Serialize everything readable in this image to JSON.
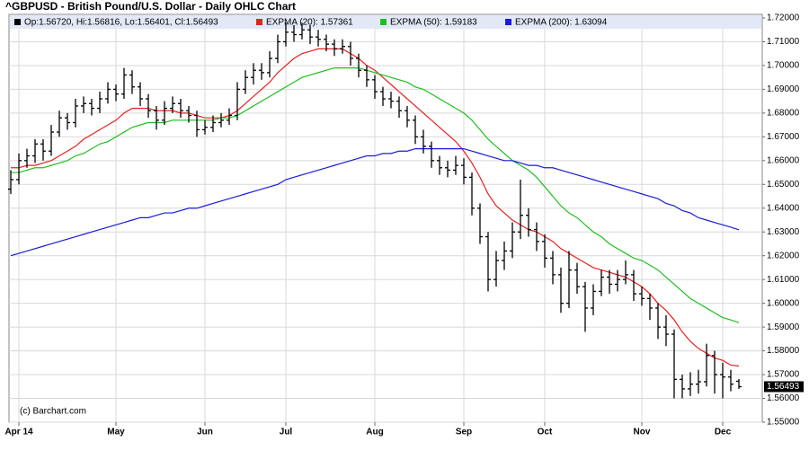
{
  "chart_data": {
    "type": "ohlc",
    "title": "^GBPUSD - British Pound/U.S. Dollar - Daily OHLC Chart",
    "ohlc_legend": "Op:1.56720, Hi:1.56816, Lo:1.56401, Cl:1.56493",
    "last_price_label": "1.56493",
    "copyright": "(c) Barchart.com",
    "bar_color": "#000000",
    "grid": true,
    "ylim": [
      1.55,
      1.72
    ],
    "yticks": [
      {
        "value": 1.55,
        "label": "1.55000"
      },
      {
        "value": 1.56,
        "label": "1.56000"
      },
      {
        "value": 1.57,
        "label": "1.57000"
      },
      {
        "value": 1.58,
        "label": "1.58000"
      },
      {
        "value": 1.59,
        "label": "1.59000"
      },
      {
        "value": 1.6,
        "label": "1.60000"
      },
      {
        "value": 1.61,
        "label": "1.61000"
      },
      {
        "value": 1.62,
        "label": "1.62000"
      },
      {
        "value": 1.63,
        "label": "1.63000"
      },
      {
        "value": 1.64,
        "label": "1.64000"
      },
      {
        "value": 1.65,
        "label": "1.65000"
      },
      {
        "value": 1.66,
        "label": "1.66000"
      },
      {
        "value": 1.67,
        "label": "1.67000"
      },
      {
        "value": 1.68,
        "label": "1.68000"
      },
      {
        "value": 1.69,
        "label": "1.69000"
      },
      {
        "value": 1.7,
        "label": "1.70000"
      },
      {
        "value": 1.71,
        "label": "1.71000"
      },
      {
        "value": 1.72,
        "label": "1.72000"
      }
    ],
    "categories": [
      null,
      "Apr 14",
      null,
      null,
      null,
      null,
      null,
      null,
      null,
      null,
      null,
      null,
      null,
      "May",
      null,
      null,
      null,
      null,
      null,
      null,
      null,
      null,
      null,
      null,
      "Jun",
      null,
      null,
      null,
      null,
      null,
      null,
      null,
      null,
      null,
      "Jul",
      null,
      null,
      null,
      null,
      null,
      null,
      null,
      null,
      null,
      null,
      "Aug",
      null,
      null,
      null,
      null,
      null,
      null,
      null,
      null,
      null,
      null,
      "Sep",
      null,
      null,
      null,
      null,
      null,
      null,
      null,
      null,
      null,
      "Oct",
      null,
      null,
      null,
      null,
      null,
      null,
      null,
      null,
      null,
      null,
      null,
      "Nov",
      null,
      null,
      null,
      null,
      null,
      null,
      null,
      null,
      null,
      "Dec",
      null,
      null
    ],
    "ohlc": [
      [
        1.648,
        1.656,
        1.646,
        1.652
      ],
      [
        1.652,
        1.663,
        1.65,
        1.66
      ],
      [
        1.66,
        1.665,
        1.657,
        1.662
      ],
      [
        1.662,
        1.669,
        1.659,
        1.667
      ],
      [
        1.667,
        1.669,
        1.66,
        1.664
      ],
      [
        1.664,
        1.675,
        1.662,
        1.672
      ],
      [
        1.672,
        1.681,
        1.67,
        1.678
      ],
      [
        1.678,
        1.68,
        1.673,
        1.676
      ],
      [
        1.676,
        1.686,
        1.674,
        1.683
      ],
      [
        1.683,
        1.687,
        1.68,
        1.684
      ],
      [
        1.684,
        1.686,
        1.679,
        1.682
      ],
      [
        1.682,
        1.689,
        1.68,
        1.686
      ],
      [
        1.686,
        1.693,
        1.684,
        1.69
      ],
      [
        1.69,
        1.692,
        1.685,
        1.688
      ],
      [
        1.688,
        1.699,
        1.686,
        1.696
      ],
      [
        1.696,
        1.698,
        1.688,
        1.691
      ],
      [
        1.691,
        1.693,
        1.683,
        1.686
      ],
      [
        1.686,
        1.688,
        1.678,
        1.681
      ],
      [
        1.681,
        1.683,
        1.673,
        1.677
      ],
      [
        1.677,
        1.685,
        1.675,
        1.682
      ],
      [
        1.682,
        1.687,
        1.68,
        1.684
      ],
      [
        1.684,
        1.686,
        1.678,
        1.681
      ],
      [
        1.681,
        1.683,
        1.676,
        1.679
      ],
      [
        1.679,
        1.681,
        1.67,
        1.673
      ],
      [
        1.673,
        1.677,
        1.671,
        1.674
      ],
      [
        1.674,
        1.679,
        1.672,
        1.676
      ],
      [
        1.676,
        1.68,
        1.674,
        1.677
      ],
      [
        1.677,
        1.682,
        1.675,
        1.679
      ],
      [
        1.679,
        1.693,
        1.677,
        1.69
      ],
      [
        1.69,
        1.698,
        1.688,
        1.695
      ],
      [
        1.695,
        1.701,
        1.692,
        1.698
      ],
      [
        1.698,
        1.701,
        1.694,
        1.697
      ],
      [
        1.697,
        1.706,
        1.695,
        1.703
      ],
      [
        1.703,
        1.713,
        1.701,
        1.71
      ],
      [
        1.71,
        1.718,
        1.708,
        1.714
      ],
      [
        1.714,
        1.717,
        1.71,
        1.713
      ],
      [
        1.713,
        1.718,
        1.711,
        1.715
      ],
      [
        1.715,
        1.717,
        1.709,
        1.712
      ],
      [
        1.712,
        1.715,
        1.708,
        1.711
      ],
      [
        1.711,
        1.713,
        1.706,
        1.709
      ],
      [
        1.709,
        1.711,
        1.704,
        1.707
      ],
      [
        1.707,
        1.711,
        1.705,
        1.708
      ],
      [
        1.708,
        1.71,
        1.7,
        1.703
      ],
      [
        1.703,
        1.705,
        1.695,
        1.698
      ],
      [
        1.698,
        1.7,
        1.691,
        1.694
      ],
      [
        1.694,
        1.696,
        1.686,
        1.689
      ],
      [
        1.689,
        1.691,
        1.683,
        1.686
      ],
      [
        1.686,
        1.689,
        1.682,
        1.685
      ],
      [
        1.685,
        1.687,
        1.678,
        1.681
      ],
      [
        1.681,
        1.683,
        1.674,
        1.677
      ],
      [
        1.677,
        1.679,
        1.667,
        1.67
      ],
      [
        1.67,
        1.673,
        1.663,
        1.666
      ],
      [
        1.666,
        1.668,
        1.657,
        1.66
      ],
      [
        1.66,
        1.662,
        1.654,
        1.657
      ],
      [
        1.657,
        1.66,
        1.653,
        1.656
      ],
      [
        1.656,
        1.662,
        1.654,
        1.658
      ],
      [
        1.658,
        1.661,
        1.65,
        1.653
      ],
      [
        1.653,
        1.655,
        1.637,
        1.64
      ],
      [
        1.64,
        1.642,
        1.625,
        1.628
      ],
      [
        1.628,
        1.63,
        1.605,
        1.61
      ],
      [
        1.61,
        1.622,
        1.607,
        1.618
      ],
      [
        1.618,
        1.626,
        1.614,
        1.622
      ],
      [
        1.622,
        1.634,
        1.619,
        1.63
      ],
      [
        1.63,
        1.652,
        1.627,
        1.637
      ],
      [
        1.637,
        1.64,
        1.628,
        1.631
      ],
      [
        1.631,
        1.634,
        1.622,
        1.626
      ],
      [
        1.626,
        1.629,
        1.615,
        1.619
      ],
      [
        1.619,
        1.622,
        1.608,
        1.612
      ],
      [
        1.612,
        1.615,
        1.596,
        1.6
      ],
      [
        1.6,
        1.622,
        1.598,
        1.614
      ],
      [
        1.614,
        1.617,
        1.604,
        1.607
      ],
      [
        1.607,
        1.609,
        1.588,
        1.598
      ],
      [
        1.598,
        1.608,
        1.595,
        1.605
      ],
      [
        1.605,
        1.614,
        1.603,
        1.611
      ],
      [
        1.611,
        1.614,
        1.604,
        1.608
      ],
      [
        1.608,
        1.614,
        1.605,
        1.61
      ],
      [
        1.61,
        1.618,
        1.608,
        1.612
      ],
      [
        1.612,
        1.614,
        1.601,
        1.604
      ],
      [
        1.604,
        1.607,
        1.599,
        1.602
      ],
      [
        1.602,
        1.604,
        1.593,
        1.598
      ],
      [
        1.598,
        1.6,
        1.585,
        1.59
      ],
      [
        1.59,
        1.595,
        1.582,
        1.587
      ],
      [
        1.587,
        1.589,
        1.56,
        1.568
      ],
      [
        1.568,
        1.57,
        1.56,
        1.564
      ],
      [
        1.564,
        1.571,
        1.561,
        1.566
      ],
      [
        1.566,
        1.572,
        1.562,
        1.567
      ],
      [
        1.567,
        1.583,
        1.565,
        1.578
      ],
      [
        1.578,
        1.58,
        1.562,
        1.57
      ],
      [
        1.57,
        1.575,
        1.56,
        1.569
      ],
      [
        1.569,
        1.572,
        1.563,
        1.566
      ],
      [
        1.5672,
        1.56816,
        1.56401,
        1.56493
      ]
    ],
    "series": [
      {
        "name": "EXPMA (20): 1.57361",
        "color": "#e8201e",
        "values": [
          1.657,
          1.657,
          1.658,
          1.658,
          1.659,
          1.66,
          1.662,
          1.664,
          1.666,
          1.669,
          1.671,
          1.673,
          1.675,
          1.677,
          1.68,
          1.682,
          1.682,
          1.682,
          1.681,
          1.681,
          1.681,
          1.68,
          1.68,
          1.679,
          1.678,
          1.678,
          1.678,
          1.679,
          1.681,
          1.684,
          1.687,
          1.69,
          1.693,
          1.697,
          1.7,
          1.703,
          1.705,
          1.706,
          1.707,
          1.707,
          1.707,
          1.707,
          1.705,
          1.703,
          1.7,
          1.698,
          1.695,
          1.692,
          1.689,
          1.686,
          1.683,
          1.68,
          1.677,
          1.674,
          1.671,
          1.668,
          1.664,
          1.659,
          1.653,
          1.646,
          1.641,
          1.638,
          1.635,
          1.633,
          1.631,
          1.63,
          1.628,
          1.626,
          1.623,
          1.621,
          1.619,
          1.617,
          1.615,
          1.614,
          1.613,
          1.612,
          1.611,
          1.609,
          1.607,
          1.604,
          1.6,
          1.597,
          1.593,
          1.588,
          1.584,
          1.581,
          1.579,
          1.577,
          1.576,
          1.574,
          1.5736
        ]
      },
      {
        "name": "EXPMA (50): 1.59183",
        "color": "#1fbf1f",
        "values": [
          1.655,
          1.655,
          1.656,
          1.657,
          1.657,
          1.658,
          1.659,
          1.66,
          1.662,
          1.663,
          1.665,
          1.667,
          1.668,
          1.67,
          1.672,
          1.674,
          1.675,
          1.676,
          1.676,
          1.676,
          1.677,
          1.677,
          1.677,
          1.677,
          1.677,
          1.677,
          1.678,
          1.678,
          1.679,
          1.681,
          1.683,
          1.685,
          1.687,
          1.689,
          1.691,
          1.693,
          1.695,
          1.696,
          1.697,
          1.698,
          1.699,
          1.699,
          1.699,
          1.699,
          1.698,
          1.697,
          1.696,
          1.695,
          1.694,
          1.693,
          1.691,
          1.69,
          1.688,
          1.686,
          1.684,
          1.682,
          1.68,
          1.677,
          1.673,
          1.669,
          1.666,
          1.663,
          1.66,
          1.658,
          1.656,
          1.653,
          1.649,
          1.645,
          1.641,
          1.638,
          1.636,
          1.633,
          1.63,
          1.628,
          1.625,
          1.623,
          1.621,
          1.619,
          1.618,
          1.616,
          1.614,
          1.611,
          1.608,
          1.605,
          1.602,
          1.6,
          1.598,
          1.596,
          1.594,
          1.593,
          1.5918
        ]
      },
      {
        "name": "EXPMA (200): 1.63094",
        "color": "#1a1ae0",
        "values": [
          1.62,
          1.621,
          1.622,
          1.623,
          1.624,
          1.625,
          1.626,
          1.627,
          1.628,
          1.629,
          1.63,
          1.631,
          1.632,
          1.633,
          1.634,
          1.635,
          1.636,
          1.636,
          1.637,
          1.638,
          1.638,
          1.639,
          1.64,
          1.64,
          1.641,
          1.642,
          1.643,
          1.644,
          1.645,
          1.646,
          1.647,
          1.648,
          1.649,
          1.65,
          1.652,
          1.653,
          1.654,
          1.655,
          1.656,
          1.657,
          1.658,
          1.659,
          1.66,
          1.661,
          1.662,
          1.662,
          1.663,
          1.663,
          1.664,
          1.664,
          1.665,
          1.665,
          1.665,
          1.665,
          1.665,
          1.665,
          1.665,
          1.664,
          1.663,
          1.662,
          1.661,
          1.66,
          1.66,
          1.659,
          1.658,
          1.658,
          1.657,
          1.657,
          1.656,
          1.655,
          1.654,
          1.653,
          1.652,
          1.651,
          1.65,
          1.649,
          1.648,
          1.647,
          1.646,
          1.645,
          1.644,
          1.642,
          1.641,
          1.639,
          1.638,
          1.636,
          1.635,
          1.634,
          1.633,
          1.632,
          1.6309
        ]
      }
    ]
  }
}
